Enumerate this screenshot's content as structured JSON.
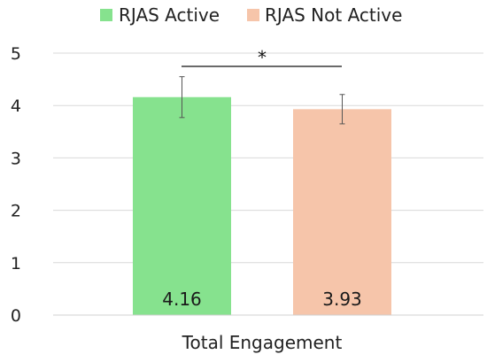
{
  "chart_data": {
    "type": "bar",
    "categories": [
      "Total Engagement"
    ],
    "series": [
      {
        "name": "RJAS Active",
        "values": [
          4.16
        ],
        "error": [
          0.39
        ],
        "data_label": "4.16",
        "color": "#86e28e"
      },
      {
        "name": "RJAS Not Active",
        "values": [
          3.93
        ],
        "error": [
          0.28
        ],
        "data_label": "3.93",
        "color": "#f6c5aa"
      }
    ],
    "y_ticks": [
      0,
      1,
      2,
      3,
      4,
      5
    ],
    "ylim": [
      0,
      5
    ],
    "grid": true,
    "legend": "top-center",
    "significance": {
      "label": "*",
      "between": [
        "RJAS Active",
        "RJAS Not Active"
      ]
    }
  }
}
